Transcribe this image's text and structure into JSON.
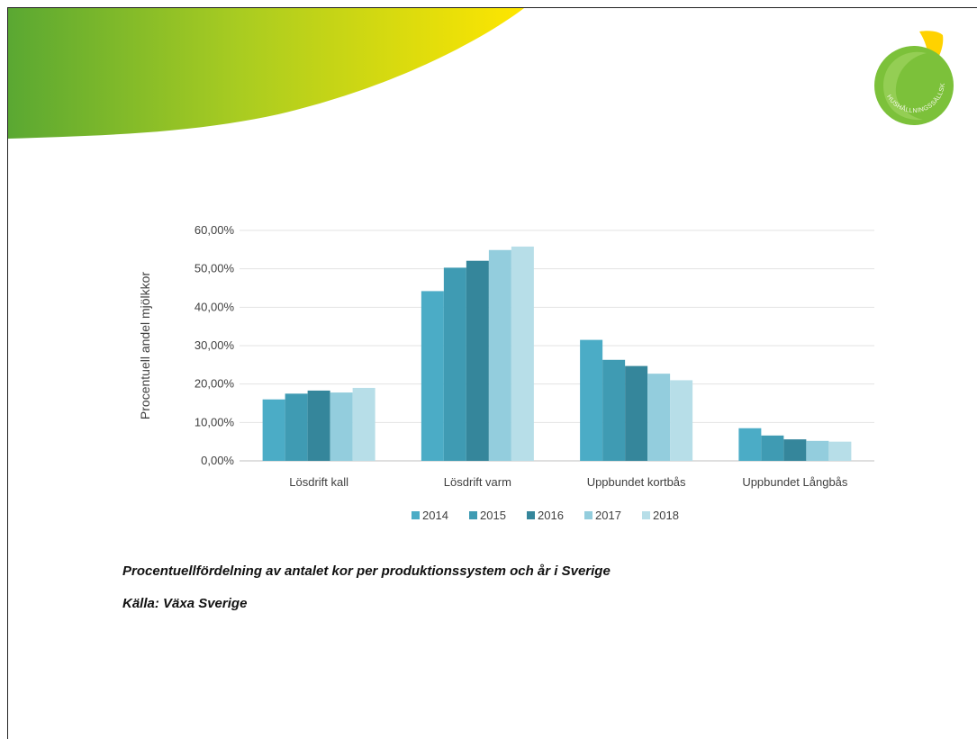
{
  "slide": {
    "logo_text": "HUSHÅLLNINGSSÄLLSKAPET",
    "caption": "Procentuellfördelning av antalet kor per produktionssystem och år i Sverige",
    "source": "Källa: Växa Sverige"
  },
  "colors": {
    "swoosh_green": "#6fb630",
    "swoosh_yellow": "#ffe400",
    "logo_green": "#7cc13a",
    "logo_yellow": "#ffd200"
  },
  "chart_data": {
    "type": "bar",
    "title": "",
    "xlabel": "",
    "ylabel": "Procentuell andel mjölkkor",
    "ylim": [
      0,
      60
    ],
    "ytick_labels": [
      "0,00%",
      "10,00%",
      "20,00%",
      "30,00%",
      "40,00%",
      "50,00%",
      "60,00%"
    ],
    "grid": true,
    "legend_position": "bottom",
    "categories": [
      "Lösdrift kall",
      "Lösdrift varm",
      "Uppbundet kortbås",
      "Uppbundet Långbås"
    ],
    "series": [
      {
        "name": "2014",
        "color": "#4bacc6",
        "values": [
          16.0,
          44.2,
          31.5,
          8.5
        ]
      },
      {
        "name": "2015",
        "color": "#3f9bb3",
        "values": [
          17.5,
          50.3,
          26.3,
          6.6
        ]
      },
      {
        "name": "2016",
        "color": "#35869b",
        "values": [
          18.3,
          52.1,
          24.7,
          5.6
        ]
      },
      {
        "name": "2017",
        "color": "#93cddd",
        "values": [
          17.8,
          54.9,
          22.7,
          5.2
        ]
      },
      {
        "name": "2018",
        "color": "#b7dee8",
        "values": [
          19.0,
          55.8,
          21.0,
          5.0
        ]
      }
    ]
  }
}
